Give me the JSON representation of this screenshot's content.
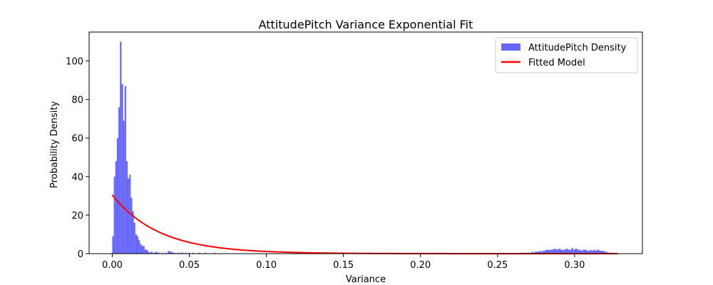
{
  "chart_data": {
    "type": "histogram+line",
    "title": "AttitudePitch Variance Exponential Fit",
    "xlabel": "Variance",
    "ylabel": "Probability Density",
    "xlim": [
      -0.015,
      0.344
    ],
    "ylim": [
      0,
      115
    ],
    "xticks": [
      0.0,
      0.05,
      0.1,
      0.15,
      0.2,
      0.25,
      0.3
    ],
    "xtick_labels": [
      "0.00",
      "0.05",
      "0.10",
      "0.15",
      "0.20",
      "0.25",
      "0.30"
    ],
    "yticks": [
      0,
      20,
      40,
      60,
      80,
      100
    ],
    "ytick_labels": [
      "0",
      "20",
      "40",
      "60",
      "80",
      "100"
    ],
    "legend_position": "top-right",
    "bin_width": 0.001,
    "series": [
      {
        "name": "AttitudePitch Density",
        "kind": "histogram",
        "color": "#6666ff",
        "bins_start": [
          0.0,
          0.001,
          0.002,
          0.003,
          0.004,
          0.005,
          0.006,
          0.007,
          0.008,
          0.009,
          0.01,
          0.011,
          0.012,
          0.013,
          0.014,
          0.015,
          0.016,
          0.017,
          0.018,
          0.019,
          0.02,
          0.021,
          0.022,
          0.023,
          0.024,
          0.025,
          0.026,
          0.027,
          0.028,
          0.029,
          0.03,
          0.032,
          0.034,
          0.036,
          0.037,
          0.038,
          0.039,
          0.04,
          0.042,
          0.044,
          0.045,
          0.047,
          0.049,
          0.052,
          0.056,
          0.06,
          0.066,
          0.266,
          0.268,
          0.27,
          0.272,
          0.273,
          0.274,
          0.275,
          0.276,
          0.277,
          0.278,
          0.279,
          0.28,
          0.281,
          0.282,
          0.283,
          0.284,
          0.285,
          0.286,
          0.287,
          0.288,
          0.289,
          0.29,
          0.291,
          0.292,
          0.293,
          0.294,
          0.295,
          0.296,
          0.297,
          0.298,
          0.299,
          0.3,
          0.301,
          0.302,
          0.303,
          0.304,
          0.305,
          0.306,
          0.307,
          0.308,
          0.309,
          0.31,
          0.311,
          0.312,
          0.313,
          0.314,
          0.315,
          0.316,
          0.317,
          0.318,
          0.319,
          0.32,
          0.321,
          0.322,
          0.323
        ],
        "values": [
          9,
          40,
          48,
          60,
          76,
          110,
          88,
          69,
          87,
          48,
          39,
          41,
          29,
          22,
          16,
          10,
          9,
          7,
          5,
          4,
          4,
          2,
          2,
          1,
          0.5,
          1,
          0.5,
          0.5,
          1,
          0.5,
          0.5,
          0.5,
          0.5,
          1.5,
          1,
          1,
          0.5,
          0.5,
          0.5,
          0.5,
          0.5,
          0.5,
          0.5,
          0.5,
          0.5,
          0.5,
          0.5,
          0.5,
          0.5,
          0.5,
          1,
          0.5,
          1,
          1,
          1,
          1.5,
          1,
          1.5,
          1.5,
          2,
          2,
          2,
          2,
          2,
          2.5,
          2.5,
          2,
          2.5,
          2.5,
          2,
          2,
          2,
          2.5,
          2.5,
          2,
          2,
          3,
          2,
          2.5,
          2.5,
          2,
          2,
          1.5,
          2,
          2,
          2,
          1.5,
          1.5,
          2,
          1.5,
          2,
          1.5,
          2,
          2,
          1.5,
          1.5,
          1.5,
          1,
          1,
          0.5,
          0.5,
          0.5
        ]
      },
      {
        "name": "Fitted Model",
        "kind": "line",
        "color": "#ff0000",
        "model": "exponential",
        "x_range": [
          0.0,
          0.328
        ],
        "y_at_zero": 30.5,
        "rate": 33.0
      }
    ]
  }
}
